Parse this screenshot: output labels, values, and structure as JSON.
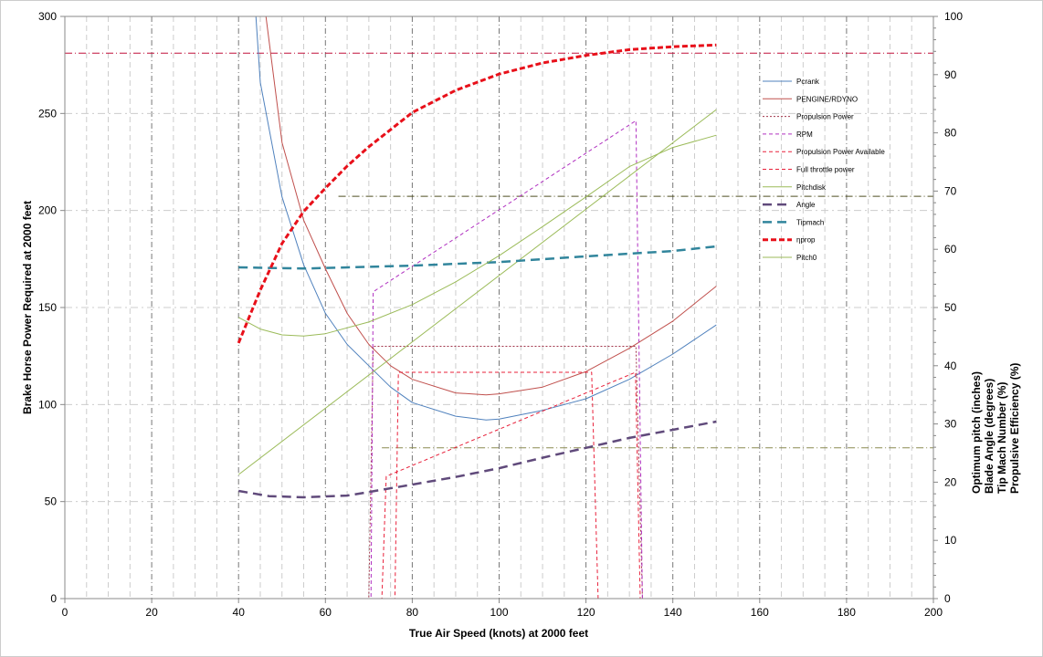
{
  "chart_data": {
    "type": "line",
    "xlabel": "True Air Speed (knots) at 2000 feet",
    "ylabel": "Brake Horse Power Required at 2000 feet",
    "y2labels": [
      "Optimum pitch (inches)",
      "Blade Angle (degrees)",
      "Tip Mach Number (%)",
      "Propulsive Efficiency (%)"
    ],
    "xlim": [
      0,
      200
    ],
    "ylim": [
      0,
      300
    ],
    "y2lim": [
      0,
      100
    ],
    "xticks": [
      0,
      20,
      40,
      60,
      80,
      100,
      120,
      140,
      160,
      180,
      200
    ],
    "yticks": [
      0,
      50,
      100,
      150,
      200,
      250,
      300
    ],
    "y2ticks": [
      0,
      10,
      20,
      30,
      40,
      50,
      60,
      70,
      80,
      90,
      100
    ],
    "grid": true,
    "legend_position": "right",
    "series": [
      {
        "name": "Pcrank",
        "axis": "left",
        "color": "#4f81bd",
        "style": "solid",
        "width": 1,
        "points": [
          [
            44,
            300
          ],
          [
            45,
            266
          ],
          [
            50,
            207
          ],
          [
            55,
            172
          ],
          [
            60,
            147
          ],
          [
            65,
            131
          ],
          [
            70,
            120
          ],
          [
            75,
            109
          ],
          [
            80,
            101
          ],
          [
            90,
            94
          ],
          [
            97,
            92
          ],
          [
            100,
            92.5
          ],
          [
            110,
            97
          ],
          [
            120,
            103
          ],
          [
            130,
            113
          ],
          [
            140,
            126
          ],
          [
            150,
            141
          ]
        ]
      },
      {
        "name": "PENGINE/RDYNO",
        "axis": "left",
        "color": "#c0504d",
        "style": "solid",
        "width": 1,
        "points": [
          [
            46.3,
            300
          ],
          [
            50,
            235
          ],
          [
            55,
            195
          ],
          [
            60,
            170
          ],
          [
            65,
            147
          ],
          [
            70,
            131
          ],
          [
            75,
            120
          ],
          [
            80,
            113
          ],
          [
            90,
            106
          ],
          [
            97,
            105
          ],
          [
            100,
            105.5
          ],
          [
            110,
            109
          ],
          [
            120,
            117
          ],
          [
            130,
            129
          ],
          [
            140,
            143
          ],
          [
            150,
            161
          ]
        ]
      },
      {
        "name": "Propulsion Power",
        "axis": "left",
        "color": "#a0344a",
        "style": "dotted",
        "width": 1,
        "points": [
          [
            40,
            0
          ],
          [
            70,
            0
          ],
          [
            71,
            130
          ],
          [
            131.5,
            130
          ],
          [
            133,
            0
          ],
          [
            150,
            0
          ]
        ]
      },
      {
        "name": "RPM",
        "axis": "right",
        "color": "#b030c0",
        "style": "dashed",
        "width": 1,
        "points": [
          [
            40,
            0
          ],
          [
            70.5,
            0
          ],
          [
            71,
            52.7
          ],
          [
            131.5,
            82.1
          ],
          [
            133,
            0
          ],
          [
            150,
            0
          ]
        ]
      },
      {
        "name": "Propulsion Power Available",
        "axis": "left",
        "color": "#e8203a",
        "style": "dashed",
        "width": 1,
        "points": [
          [
            40,
            0
          ],
          [
            76,
            0
          ],
          [
            76.8,
            116.6
          ],
          [
            121.3,
            116.6
          ],
          [
            122.8,
            0
          ],
          [
            150,
            0
          ]
        ]
      },
      {
        "name": "Full throttle power",
        "axis": "left",
        "color": "#e8203a",
        "style": "dashed",
        "width": 1,
        "points": [
          [
            40,
            0
          ],
          [
            73,
            0
          ],
          [
            74,
            63
          ],
          [
            131.4,
            116.6
          ],
          [
            132.5,
            0
          ],
          [
            150,
            0
          ]
        ]
      },
      {
        "name": "Pitchdisk",
        "axis": "right",
        "color": "#9bbb59",
        "style": "solid",
        "width": 1,
        "points": [
          [
            40,
            21.3
          ],
          [
            150,
            84
          ]
        ]
      },
      {
        "name": "Angle",
        "axis": "right",
        "color": "#604a7b",
        "style": "dashed-thick",
        "width": 2.5,
        "points": [
          [
            40,
            18.5
          ],
          [
            47,
            17.6
          ],
          [
            55,
            17.4
          ],
          [
            65,
            17.7
          ],
          [
            70,
            18.3
          ],
          [
            80,
            19.6
          ],
          [
            90,
            20.9
          ],
          [
            100,
            22.4
          ],
          [
            110,
            24.2
          ],
          [
            120,
            25.9
          ],
          [
            130,
            27.6
          ],
          [
            140,
            29
          ],
          [
            150,
            30.4
          ]
        ]
      },
      {
        "name": "Tipmach",
        "axis": "right",
        "color": "#31859c",
        "style": "dashed-thick",
        "width": 2.5,
        "points": [
          [
            40,
            56.9
          ],
          [
            55,
            56.7
          ],
          [
            80,
            57.2
          ],
          [
            100,
            57.8
          ],
          [
            120,
            58.8
          ],
          [
            140,
            59.7
          ],
          [
            150,
            60.5
          ]
        ]
      },
      {
        "name": "ηprop",
        "axis": "right",
        "color": "#e8101a",
        "style": "dashed-bold",
        "width": 3,
        "points": [
          [
            40,
            43.9
          ],
          [
            45,
            53
          ],
          [
            50,
            61
          ],
          [
            55,
            66.5
          ],
          [
            60,
            70.5
          ],
          [
            65,
            74.3
          ],
          [
            70,
            77.6
          ],
          [
            80,
            83.5
          ],
          [
            90,
            87.3
          ],
          [
            100,
            90.1
          ],
          [
            110,
            92
          ],
          [
            120,
            93.3
          ],
          [
            130,
            94.3
          ],
          [
            140,
            94.8
          ],
          [
            150,
            95.1
          ]
        ]
      },
      {
        "name": "Pitch0",
        "axis": "right",
        "color": "#9bbb59",
        "style": "solid",
        "width": 1,
        "points": [
          [
            40,
            48.3
          ],
          [
            45,
            46.3
          ],
          [
            50,
            45.3
          ],
          [
            55,
            45.1
          ],
          [
            60,
            45.5
          ],
          [
            70,
            47.5
          ],
          [
            80,
            50.5
          ],
          [
            90,
            54.4
          ],
          [
            100,
            58.9
          ],
          [
            110,
            63.9
          ],
          [
            120,
            69
          ],
          [
            130,
            74.2
          ],
          [
            140,
            77.5
          ],
          [
            150,
            79.6
          ]
        ]
      }
    ],
    "reference_lines": [
      {
        "axis": "right",
        "value": 93.7,
        "from": 0,
        "to": 200,
        "color": "#c0103a"
      },
      {
        "axis": "right",
        "value": 69.1,
        "from": 63,
        "to": 200,
        "color": "#4f4f20"
      },
      {
        "axis": "right",
        "value": 25.9,
        "from": 73,
        "to": 200,
        "color": "#8a8a50"
      }
    ]
  }
}
